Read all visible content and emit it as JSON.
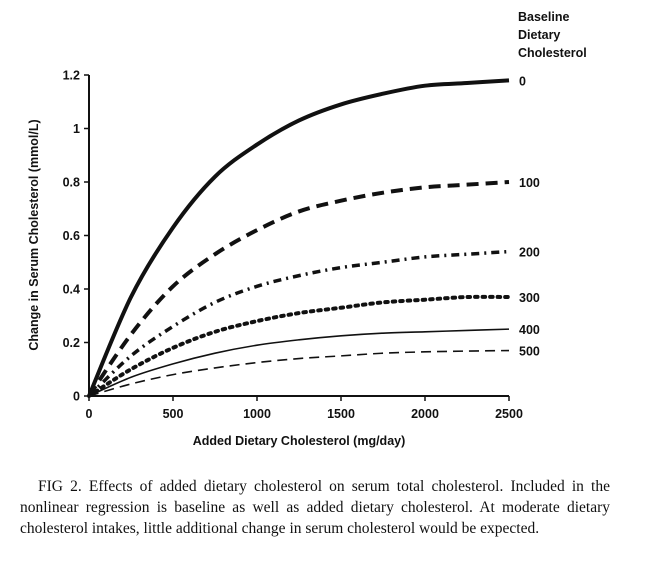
{
  "chart_data": {
    "type": "line",
    "xlabel": "Added Dietary Cholesterol (mg/day)",
    "ylabel": "Change in Serum Cholesterol (mmol/L)",
    "xlim": [
      0,
      2500
    ],
    "ylim": [
      0,
      1.2
    ],
    "xticks": [
      "0",
      "500",
      "1000",
      "1500",
      "2000",
      "2500"
    ],
    "yticks": [
      "0",
      "0.2",
      "0.4",
      "0.6",
      "0.8",
      "1",
      "1.2"
    ],
    "legend_title": [
      "Baseline",
      "Dietary",
      "Cholesterol"
    ],
    "x": [
      0,
      250,
      500,
      750,
      1000,
      1250,
      1500,
      1750,
      2000,
      2250,
      2500
    ],
    "series": [
      {
        "name": "0",
        "style": "thick-solid",
        "values": [
          0.0,
          0.37,
          0.63,
          0.82,
          0.94,
          1.03,
          1.09,
          1.13,
          1.16,
          1.17,
          1.18
        ]
      },
      {
        "name": "100",
        "style": "thick-dashed",
        "values": [
          0.0,
          0.23,
          0.41,
          0.53,
          0.62,
          0.69,
          0.73,
          0.76,
          0.78,
          0.79,
          0.8
        ]
      },
      {
        "name": "200",
        "style": "dash-dot",
        "values": [
          0.0,
          0.15,
          0.26,
          0.35,
          0.41,
          0.45,
          0.48,
          0.5,
          0.52,
          0.53,
          0.54
        ]
      },
      {
        "name": "300",
        "style": "dotted",
        "values": [
          0.0,
          0.1,
          0.18,
          0.24,
          0.28,
          0.31,
          0.33,
          0.35,
          0.36,
          0.37,
          0.37
        ]
      },
      {
        "name": "400",
        "style": "thin-solid",
        "values": [
          0.0,
          0.07,
          0.12,
          0.16,
          0.19,
          0.21,
          0.225,
          0.235,
          0.24,
          0.245,
          0.25
        ]
      },
      {
        "name": "500",
        "style": "thin-dashed",
        "values": [
          0.0,
          0.045,
          0.08,
          0.105,
          0.125,
          0.14,
          0.15,
          0.16,
          0.165,
          0.168,
          0.17
        ]
      }
    ],
    "grid": false,
    "legend_placement": "right, at line ends"
  },
  "caption": "FIG 2. Effects of added dietary cholesterol on serum total cholesterol. Included in the nonlinear regression is baseline as well as added dietary cholesterol. At moderate dietary cholesterol intakes, little additional change in serum cholesterol would be expected."
}
